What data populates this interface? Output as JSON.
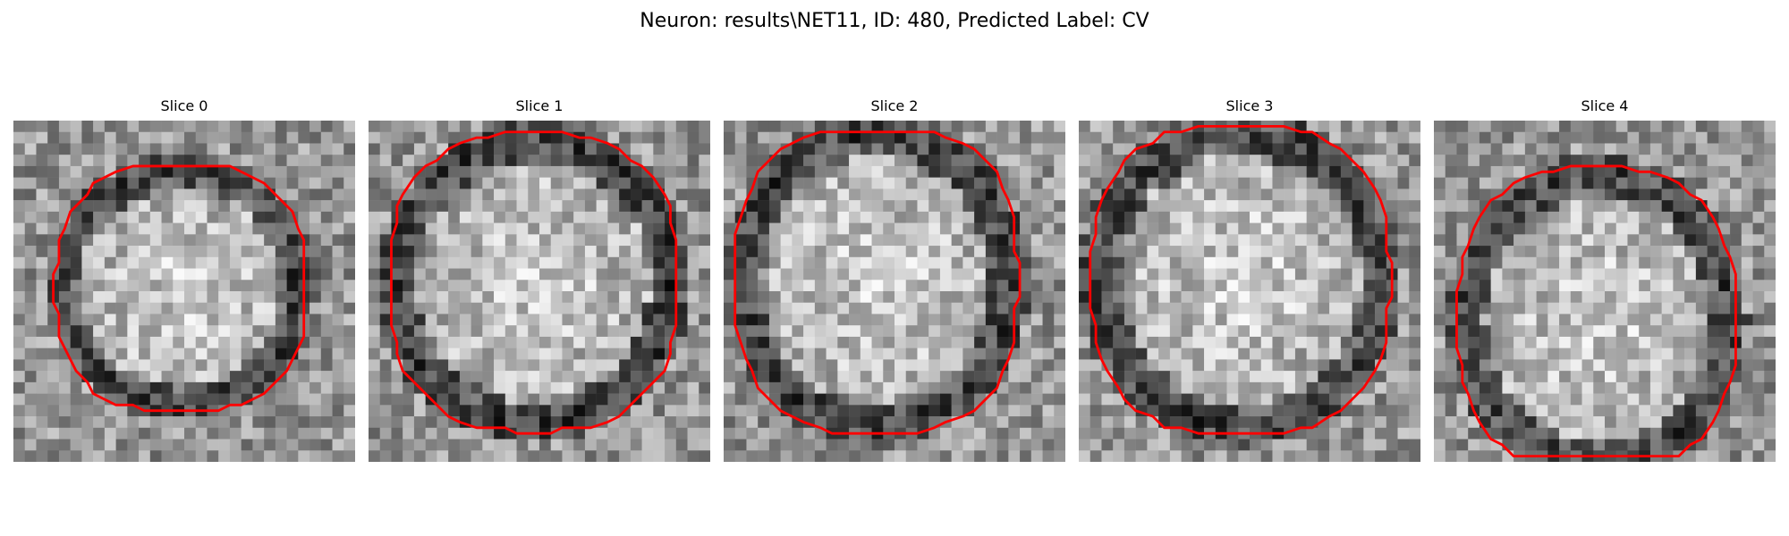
{
  "figure": {
    "title": "Neuron: results\\NET11, ID: 480, Predicted Label: CV"
  },
  "contour_color": "#ff0000",
  "panels": [
    {
      "title": "Slice 0"
    },
    {
      "title": "Slice 1"
    },
    {
      "title": "Slice 2"
    },
    {
      "title": "Slice 3"
    },
    {
      "title": "Slice 4"
    }
  ]
}
